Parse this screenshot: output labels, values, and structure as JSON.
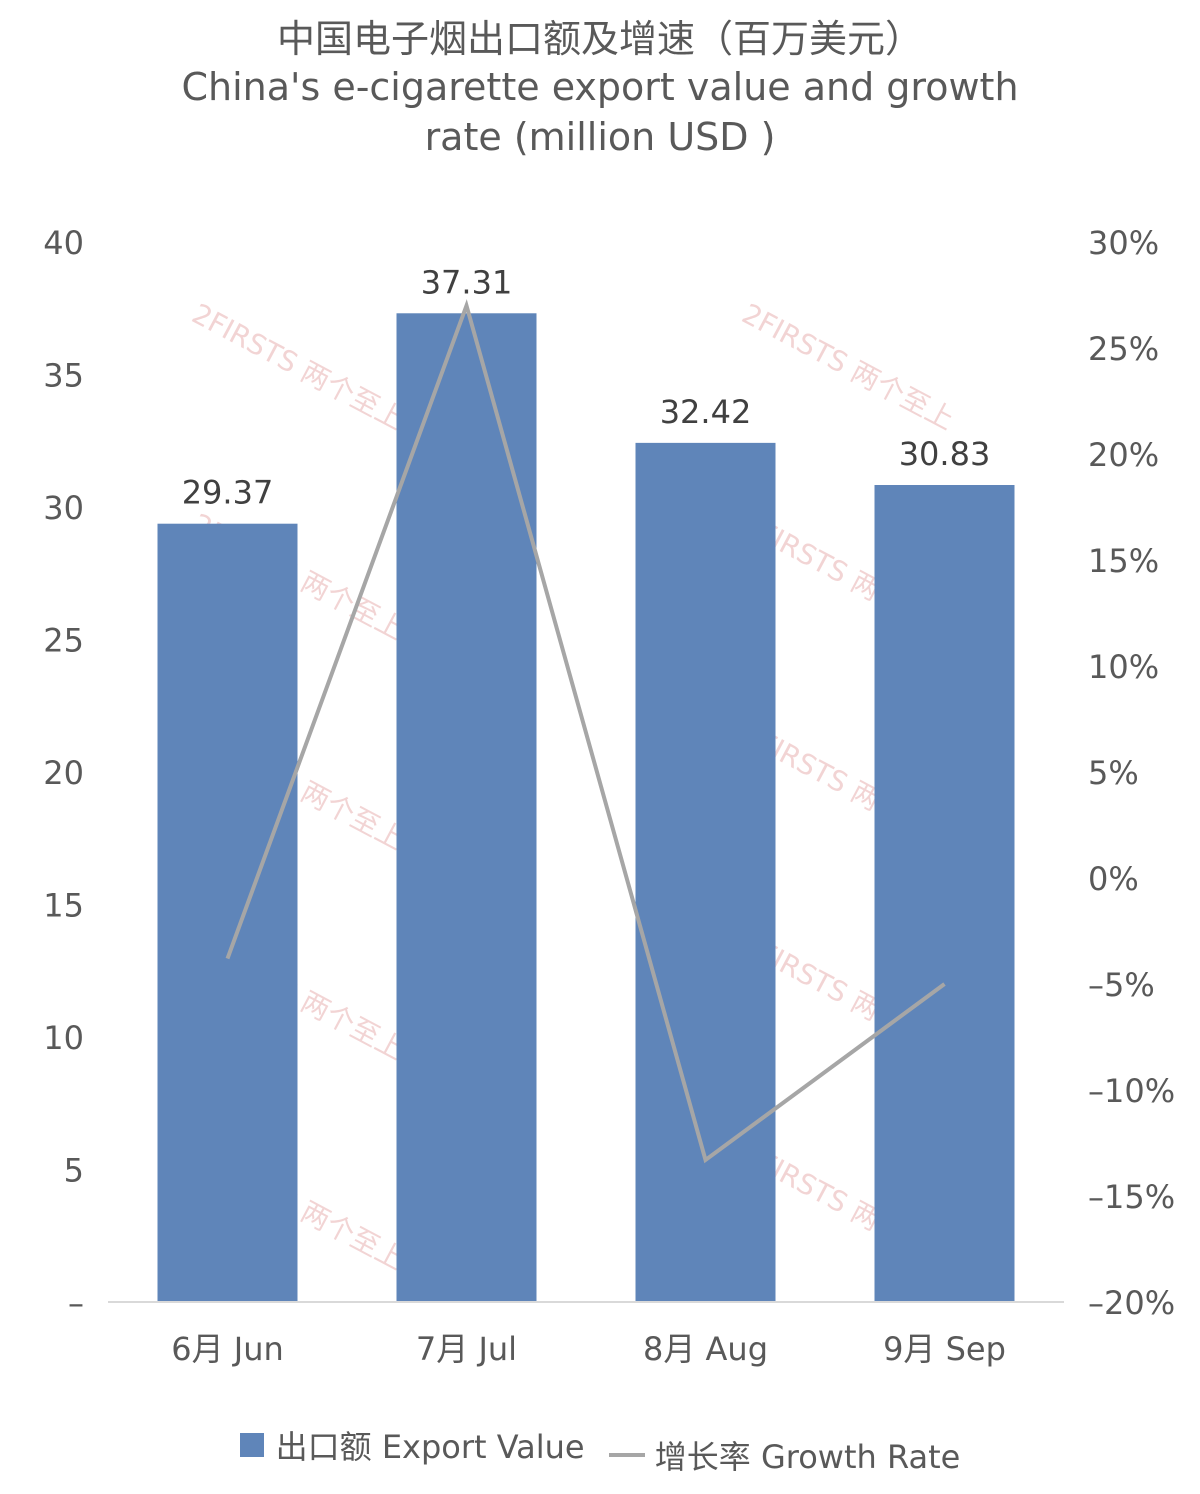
{
  "chart_data": {
    "type": "bar",
    "title_cn": "中国电子烟出口额及增速（百万美元）",
    "title_en_line1": "China's e-cigarette export value and growth",
    "title_en_line2": "rate (million USD )",
    "categories": [
      "6月 Jun",
      "7月 Jul",
      "8月 Aug",
      "9月 Sep"
    ],
    "series": [
      {
        "name": "出口额 Export Value",
        "type": "bar",
        "axis": "left",
        "values": [
          29.37,
          37.31,
          32.42,
          30.83
        ],
        "data_labels": [
          "29.37",
          "37.31",
          "32.42",
          "30.83"
        ]
      },
      {
        "name": "增长率 Growth Rate",
        "type": "line",
        "axis": "right",
        "values": [
          -3.8,
          27.0,
          -13.3,
          -5.0
        ]
      }
    ],
    "left_axis": {
      "ticks": [
        "–",
        "5",
        "10",
        "15",
        "20",
        "25",
        "30",
        "35",
        "40"
      ],
      "ylim": [
        0,
        40
      ]
    },
    "right_axis": {
      "ticks": [
        "-20%",
        "-15%",
        "-10%",
        "-5%",
        "0%",
        "5%",
        "10%",
        "15%",
        "20%",
        "25%",
        "30%"
      ],
      "ylim": [
        -20,
        30
      ]
    },
    "grid": false,
    "legend_position": "bottom",
    "colors": {
      "bar": "#5f85b9",
      "line": "#a6a6a6",
      "text": "#595959",
      "axis": "#d9d9d9"
    }
  },
  "watermark": {
    "text": "2FIRSTS 两个至上"
  }
}
